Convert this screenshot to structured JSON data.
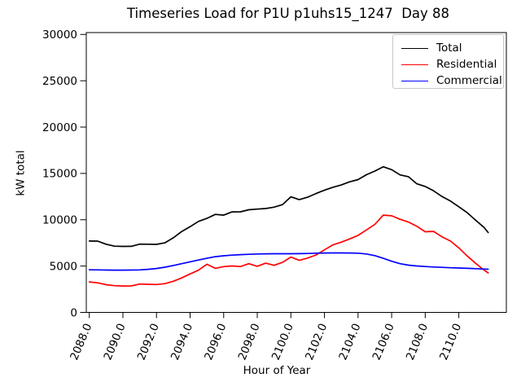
{
  "chart_data": {
    "type": "line",
    "title": "Timeseries Load for P1U p1uhs15_1247  Day 88",
    "xlabel": "Hour of Year",
    "ylabel": "kW total",
    "xlim": [
      2087.82,
      2112.83
    ],
    "ylim": [
      0,
      30200
    ],
    "grid": false,
    "legend_position": "upper right",
    "xticks": [
      2088,
      2090,
      2092,
      2094,
      2096,
      2098,
      2100,
      2102,
      2104,
      2106,
      2108,
      2110
    ],
    "xtick_labels": [
      "2088.0",
      "2090.0",
      "2092.0",
      "2094.0",
      "2096.0",
      "2098.0",
      "2100.0",
      "2102.0",
      "2104.0",
      "2106.0",
      "2108.0",
      "2110.0"
    ],
    "yticks": [
      0,
      5000,
      10000,
      15000,
      20000,
      25000,
      30000
    ],
    "ytick_labels": [
      "0",
      "5000",
      "10000",
      "15000",
      "20000",
      "25000",
      "30000"
    ],
    "x": [
      2088,
      2088.5,
      2089,
      2089.5,
      2090,
      2090.5,
      2091,
      2091.5,
      2092,
      2092.5,
      2093,
      2093.5,
      2094,
      2094.5,
      2095,
      2095.5,
      2096,
      2096.5,
      2097,
      2097.5,
      2098,
      2098.5,
      2099,
      2099.5,
      2100,
      2100.5,
      2101,
      2101.5,
      2102,
      2102.5,
      2103,
      2103.5,
      2104,
      2104.5,
      2105,
      2105.5,
      2106,
      2106.5,
      2107,
      2107.5,
      2108,
      2108.5,
      2109,
      2109.5,
      2110,
      2110.5,
      2111,
      2111.5,
      2111.75
    ],
    "series": [
      {
        "name": "Total",
        "color": "#000000",
        "values": [
          7700,
          7690,
          7360,
          7150,
          7120,
          7130,
          7370,
          7360,
          7340,
          7510,
          8050,
          8730,
          9250,
          9820,
          10150,
          10580,
          10500,
          10850,
          10860,
          11080,
          11150,
          11210,
          11360,
          11630,
          12480,
          12170,
          12430,
          12830,
          13200,
          13500,
          13750,
          14090,
          14330,
          14860,
          15250,
          15720,
          15400,
          14840,
          14650,
          13880,
          13590,
          13120,
          12500,
          12020,
          11400,
          10760,
          9960,
          9170,
          8620
        ]
      },
      {
        "name": "Residential",
        "color": "#ff0000",
        "values": [
          3290,
          3190,
          2990,
          2880,
          2850,
          2860,
          3060,
          3030,
          3010,
          3100,
          3360,
          3720,
          4150,
          4550,
          5200,
          4760,
          4940,
          5010,
          4950,
          5260,
          4980,
          5310,
          5080,
          5400,
          5970,
          5620,
          5860,
          6200,
          6750,
          7290,
          7580,
          7930,
          8310,
          8900,
          9500,
          10500,
          10430,
          10050,
          9750,
          9300,
          8700,
          8740,
          8150,
          7700,
          6960,
          6090,
          5300,
          4560,
          4260
        ]
      },
      {
        "name": "Commercial",
        "color": "#0000ff",
        "values": [
          4600,
          4590,
          4570,
          4560,
          4560,
          4570,
          4590,
          4650,
          4740,
          4880,
          5060,
          5260,
          5460,
          5650,
          5840,
          6010,
          6110,
          6180,
          6230,
          6270,
          6300,
          6320,
          6330,
          6330,
          6330,
          6340,
          6360,
          6390,
          6410,
          6420,
          6420,
          6410,
          6390,
          6300,
          6130,
          5840,
          5520,
          5260,
          5100,
          5010,
          4950,
          4900,
          4860,
          4820,
          4790,
          4760,
          4720,
          4680,
          4660
        ]
      }
    ]
  }
}
